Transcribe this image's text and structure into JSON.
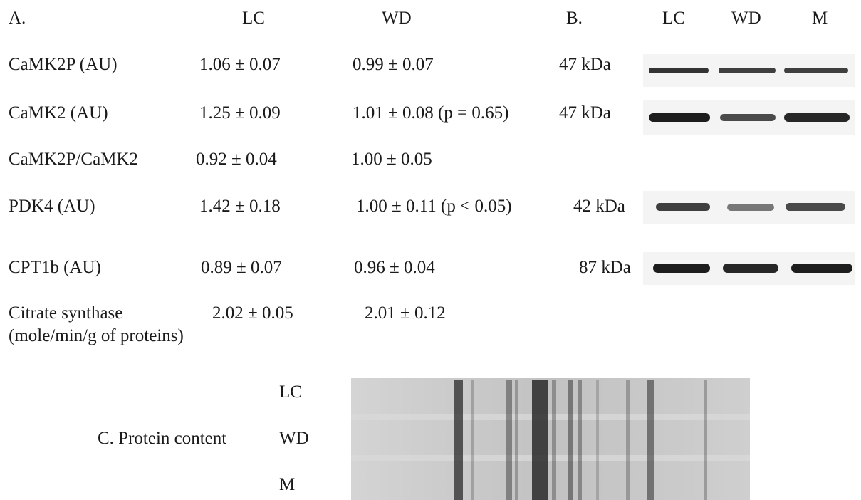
{
  "panel_a": {
    "label": "A.",
    "col_lc": "LC",
    "col_wd": "WD",
    "rows": [
      {
        "name": "CaMK2P (AU)",
        "lc": "1.06 ± 0.07",
        "wd": "0.99 ± 0.07"
      },
      {
        "name": "CaMK2 (AU)",
        "lc": "1.25 ± 0.09",
        "wd": "1.01 ± 0.08 (p = 0.65)"
      },
      {
        "name": "CaMK2P/CaMK2",
        "lc": "0.92 ± 0.04",
        "wd": "1.00 ± 0.05"
      },
      {
        "name": "PDK4 (AU)",
        "lc": "1.42 ± 0.18",
        "wd": "1.00 ± 0.11 (p < 0.05)"
      },
      {
        "name": "CPT1b (AU)",
        "lc": "0.89 ± 0.07",
        "wd": "0.96 ± 0.04"
      },
      {
        "name": "Citrate synthase",
        "name_line2": "(mole/min/g of proteins)",
        "lc": "2.02 ± 0.05",
        "wd": "2.01 ± 0.12"
      }
    ]
  },
  "panel_b": {
    "label": "B.",
    "lanes": [
      "LC",
      "WD",
      "M"
    ],
    "blots": [
      {
        "size": "47 kDa",
        "band_intensity": [
          0.85,
          0.8,
          0.8
        ]
      },
      {
        "size": "47 kDa",
        "band_intensity": [
          0.95,
          0.75,
          0.9
        ]
      },
      {
        "size": "42 kDa",
        "band_intensity": [
          0.8,
          0.55,
          0.75
        ]
      },
      {
        "size": "87 kDa",
        "band_intensity": [
          0.95,
          0.9,
          0.95
        ]
      }
    ]
  },
  "panel_c": {
    "label": "C. Protein content",
    "lanes": [
      "LC",
      "WD",
      "M"
    ]
  },
  "colors": {
    "band": "#111111",
    "membrane": "#f4f4f4",
    "gel_background": "#c9c9c9",
    "text": "#1a1a1a"
  }
}
